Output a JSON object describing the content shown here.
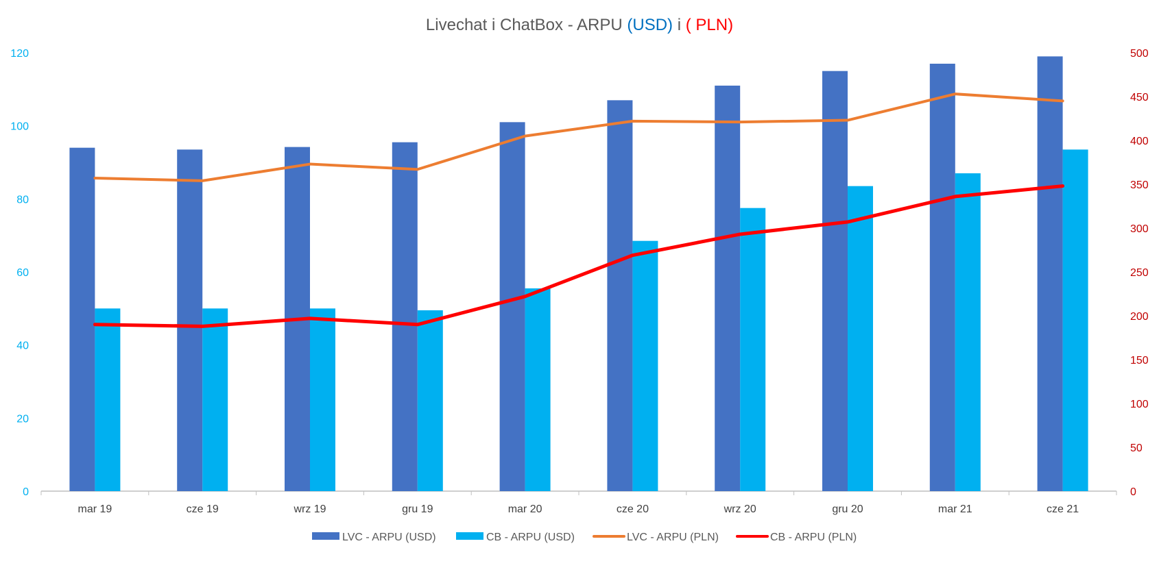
{
  "chart_data": {
    "type": "bar",
    "title": {
      "prefix": "Livechat i ChatBox - ARPU ",
      "usd": "(USD)",
      "mid": " i ",
      "pln": "( PLN)"
    },
    "categories": [
      "mar 19",
      "cze 19",
      "wrz 19",
      "gru 19",
      "mar 20",
      "cze 20",
      "wrz 20",
      "gru 20",
      "mar 21",
      "cze 21"
    ],
    "y_left": {
      "min": 0,
      "max": 120,
      "step": 20,
      "ticks": [
        "0",
        "20",
        "40",
        "60",
        "80",
        "100",
        "120"
      ],
      "color": "#00B0F0"
    },
    "y_right": {
      "min": 0,
      "max": 500,
      "step": 50,
      "ticks": [
        "0",
        "50",
        "100",
        "150",
        "200",
        "250",
        "300",
        "350",
        "400",
        "450",
        "500"
      ],
      "color": "#C00000"
    },
    "grid": false,
    "legend_position": "bottom",
    "bar_series": [
      {
        "name": "LVC - ARPU (USD)",
        "axis": "left",
        "color": "#4472C4",
        "values": [
          94,
          93.5,
          94.2,
          95.5,
          101,
          107,
          111,
          115,
          117,
          119
        ]
      },
      {
        "name": "CB - ARPU (USD)",
        "axis": "left",
        "color": "#00B0F0",
        "values": [
          50,
          50,
          50,
          49.5,
          55.5,
          68.5,
          77.5,
          83.5,
          87,
          93.5
        ]
      }
    ],
    "line_series": [
      {
        "name": "LVC - ARPU (PLN)",
        "axis": "right",
        "color": "#ED7D31",
        "values": [
          357,
          354,
          373,
          367,
          405,
          422,
          421,
          423,
          453,
          445
        ]
      },
      {
        "name": "CB - ARPU (PLN)",
        "axis": "right",
        "color": "#FF0000",
        "values": [
          190,
          188,
          197,
          190,
          222,
          269,
          293,
          307,
          336,
          348
        ]
      }
    ]
  }
}
